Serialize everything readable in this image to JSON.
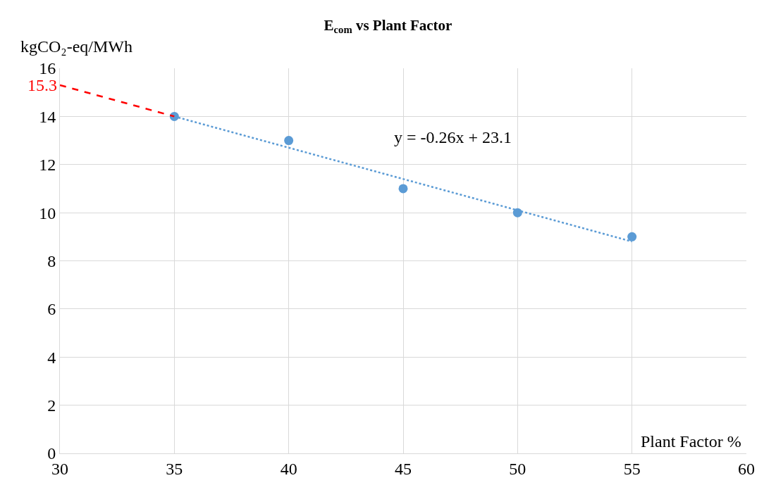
{
  "chart_data": {
    "type": "scatter",
    "title": "E$_{com}$ vs Plant Factor",
    "xlabel": "Plant Factor %",
    "ylabel": "kgCO₂-eq/MWh",
    "series": [
      {
        "color": "#5b9bd5",
        "marker": "circle",
        "x": [
          35,
          40,
          45,
          50,
          55
        ],
        "values": [
          14,
          13,
          11,
          10,
          9
        ]
      },
      {
        "type": "line",
        "color": "#5b9bd5",
        "line_style": "dotted",
        "x": [
          35,
          55
        ],
        "values": [
          14.0,
          8.8
        ]
      },
      {
        "type": "line",
        "color": "#ff0000",
        "line_style": "dashed",
        "x": [
          30,
          35
        ],
        "values": [
          15.3,
          14.0
        ]
      }
    ],
    "annotations": [
      "y = -0.26x + 23.1",
      {
        "text": "15.3",
        "x": 30,
        "y": 15.3
      }
    ],
    "xlim": [
      30,
      60
    ],
    "xticks": [
      30,
      35,
      40,
      45,
      50,
      55,
      60
    ],
    "ylim": [
      0,
      16
    ],
    "yticks": [
      0,
      2,
      4,
      6,
      8,
      10,
      12,
      14,
      16
    ],
    "grid": true
  }
}
